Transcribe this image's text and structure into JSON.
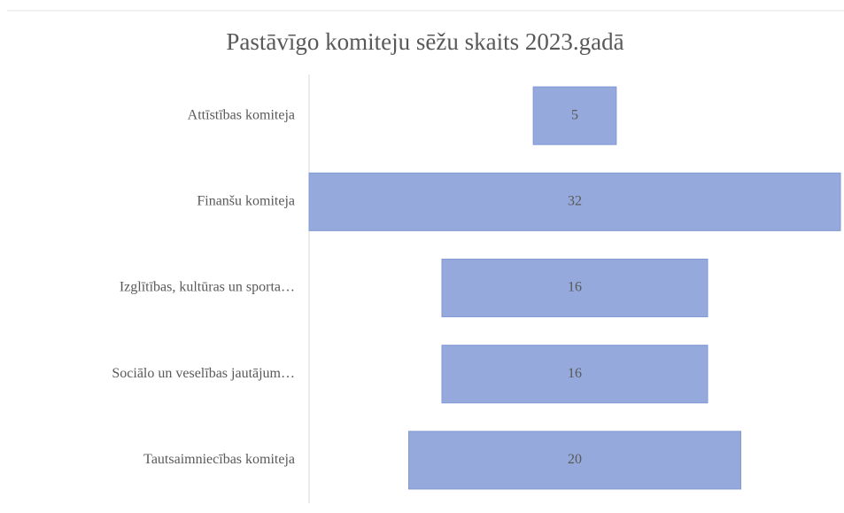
{
  "chart_data": {
    "type": "funnel",
    "title": "Pastāvīgo komiteju sēžu skaits 2023.gadā",
    "categories": [
      "Attīstības komiteja",
      "Finanšu komiteja",
      "Izglītības, kultūras un sporta…",
      "Sociālo un veselības jautājum…",
      "Tautsaimniecības komiteja"
    ],
    "values": [
      5,
      32,
      16,
      16,
      20
    ],
    "color": "#95a9dc"
  }
}
